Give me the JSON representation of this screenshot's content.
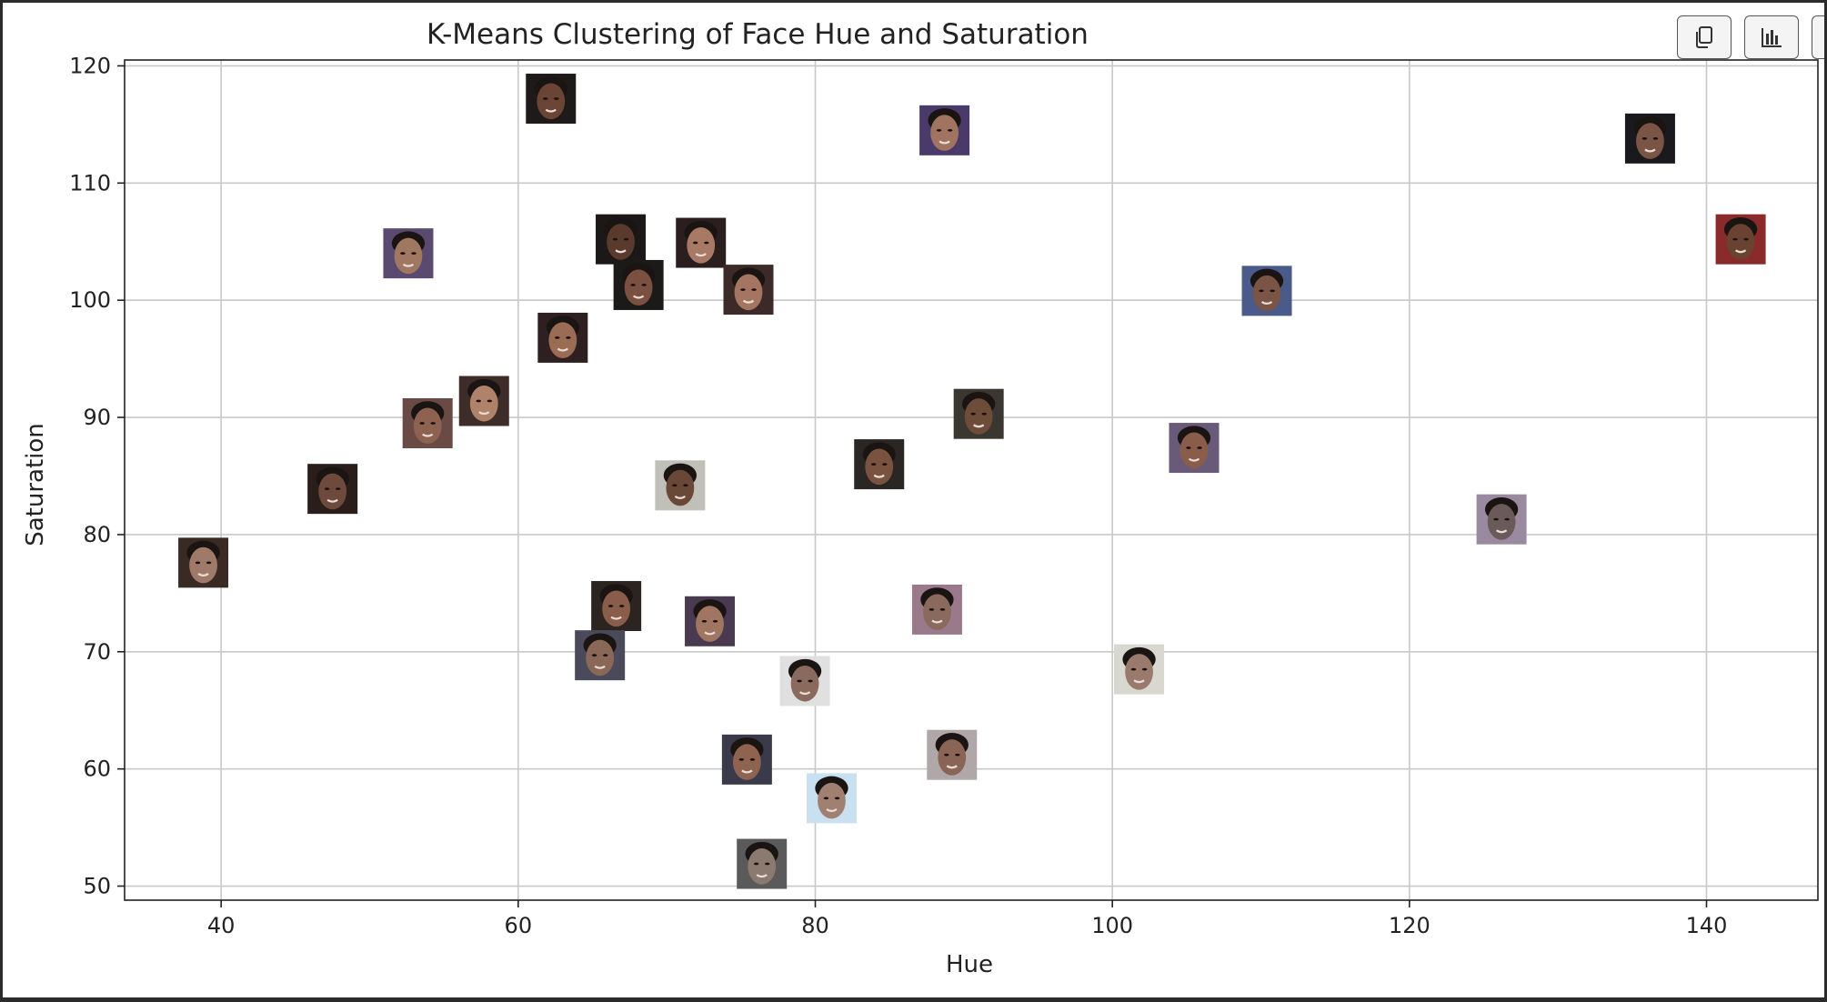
{
  "toolbar": {
    "buttons": [
      {
        "icon": "copy-icon"
      },
      {
        "icon": "bar-chart-icon"
      },
      {
        "icon": "more-icon"
      }
    ]
  },
  "chart_data": {
    "type": "scatter",
    "title": "K-Means Clustering of Face Hue and Saturation",
    "xlabel": "Hue",
    "ylabel": "Saturation",
    "xlim": [
      33.5,
      147.5
    ],
    "ylim": [
      48.8,
      120.5
    ],
    "xticks": [
      40,
      60,
      80,
      100,
      120,
      140
    ],
    "yticks": [
      50,
      60,
      70,
      80,
      90,
      100,
      110,
      120
    ],
    "grid": true,
    "marker": "face-thumbnail",
    "points": [
      {
        "x": 38.8,
        "y": 77.6,
        "tone": "#a07a68",
        "bg": "#3a2a24"
      },
      {
        "x": 47.5,
        "y": 83.9,
        "tone": "#6e4a3c",
        "bg": "#2a1e1a"
      },
      {
        "x": 52.6,
        "y": 104.0,
        "tone": "#a07862",
        "bg": "#5a4a70"
      },
      {
        "x": 53.9,
        "y": 89.5,
        "tone": "#8e6250",
        "bg": "#6a4a44"
      },
      {
        "x": 57.7,
        "y": 91.4,
        "tone": "#b0826a",
        "bg": "#3e2c28"
      },
      {
        "x": 62.2,
        "y": 117.2,
        "tone": "#6a4434",
        "bg": "#1e1a1a"
      },
      {
        "x": 63.0,
        "y": 96.8,
        "tone": "#9a6c54",
        "bg": "#2e2020"
      },
      {
        "x": 66.9,
        "y": 105.2,
        "tone": "#5a3a2c",
        "bg": "#1c1818"
      },
      {
        "x": 66.6,
        "y": 73.9,
        "tone": "#8a5c4a",
        "bg": "#2c2420"
      },
      {
        "x": 65.5,
        "y": 69.7,
        "tone": "#8a6858",
        "bg": "#4a4a5a"
      },
      {
        "x": 68.1,
        "y": 101.3,
        "tone": "#7a5040",
        "bg": "#1c1a18"
      },
      {
        "x": 70.9,
        "y": 84.2,
        "tone": "#6a4838",
        "bg": "#c0c0b8"
      },
      {
        "x": 72.9,
        "y": 72.6,
        "tone": "#a07662",
        "bg": "#4a3a50"
      },
      {
        "x": 72.3,
        "y": 104.9,
        "tone": "#a87a66",
        "bg": "#2a1e1e"
      },
      {
        "x": 75.5,
        "y": 100.9,
        "tone": "#a47662",
        "bg": "#3c2a28"
      },
      {
        "x": 75.4,
        "y": 60.8,
        "tone": "#8e6450",
        "bg": "#3a3a4a"
      },
      {
        "x": 76.4,
        "y": 51.9,
        "tone": "#8a7a70",
        "bg": "#5a5a5a"
      },
      {
        "x": 79.3,
        "y": 67.5,
        "tone": "#8a6a5c",
        "bg": "#e0e0e0"
      },
      {
        "x": 81.1,
        "y": 57.5,
        "tone": "#a08070",
        "bg": "#c8e0f0"
      },
      {
        "x": 84.3,
        "y": 86.0,
        "tone": "#7a5240",
        "bg": "#2a2624"
      },
      {
        "x": 88.2,
        "y": 73.6,
        "tone": "#8a6a5c",
        "bg": "#9a7a8a"
      },
      {
        "x": 88.7,
        "y": 114.5,
        "tone": "#a07460",
        "bg": "#4a3a6a"
      },
      {
        "x": 89.2,
        "y": 61.2,
        "tone": "#8a6454",
        "bg": "#b0a8a8"
      },
      {
        "x": 91.0,
        "y": 90.3,
        "tone": "#6e4c3a",
        "bg": "#3a3630"
      },
      {
        "x": 101.8,
        "y": 68.5,
        "tone": "#9a7a6c",
        "bg": "#d8d8d0"
      },
      {
        "x": 105.5,
        "y": 87.4,
        "tone": "#8a5c4a",
        "bg": "#6a5a7a"
      },
      {
        "x": 110.4,
        "y": 100.8,
        "tone": "#7a5444",
        "bg": "#4a5a8a"
      },
      {
        "x": 126.2,
        "y": 81.3,
        "tone": "#6a5a5a",
        "bg": "#9a8aa0"
      },
      {
        "x": 136.2,
        "y": 113.8,
        "tone": "#7a5444",
        "bg": "#1a1a1e"
      },
      {
        "x": 142.3,
        "y": 105.2,
        "tone": "#6a4232",
        "bg": "#8a2a2a"
      }
    ]
  }
}
